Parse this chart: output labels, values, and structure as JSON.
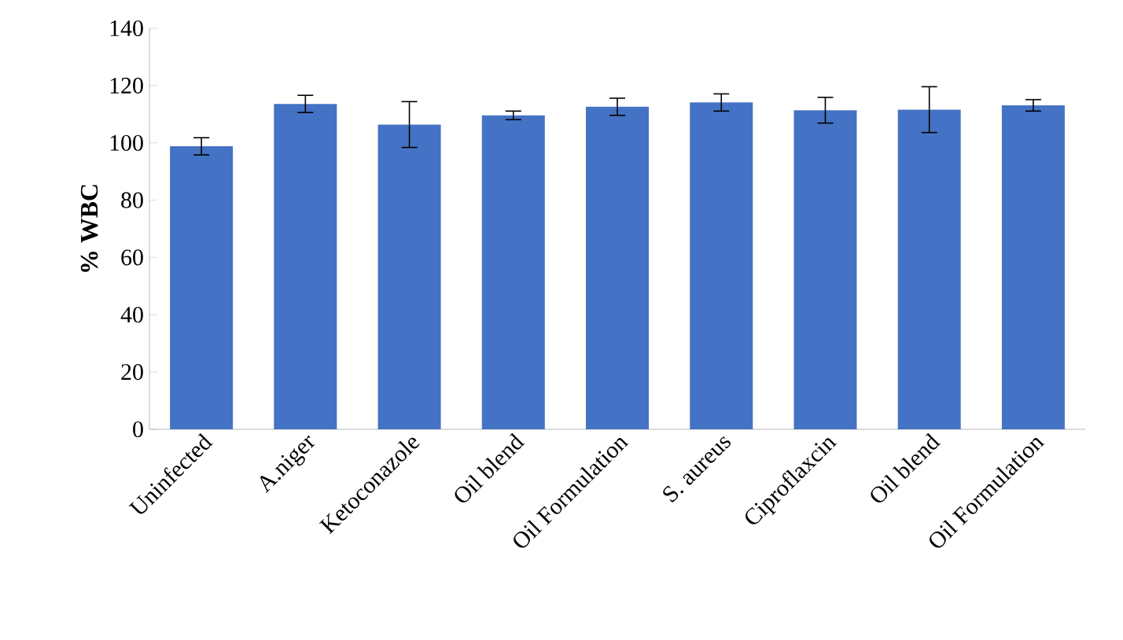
{
  "chart_data": {
    "type": "bar",
    "ylabel": "% WBC",
    "categories": [
      "Uninfected",
      "A.niger",
      "Ketoconazole",
      "Oil blend",
      "Oil Formulation",
      "S. aureus",
      "Ciproflaxcin",
      "Oil blend",
      "Oil Formulation"
    ],
    "values": [
      98.8,
      113.6,
      106.4,
      109.6,
      112.6,
      114.1,
      111.4,
      111.6,
      113.1
    ],
    "errors": [
      3,
      3,
      8,
      1.5,
      3,
      3,
      4.5,
      8,
      2
    ],
    "color": "#4472c4",
    "ylim": [
      0,
      140
    ],
    "yticks": [
      0,
      20,
      40,
      60,
      80,
      100,
      120,
      140
    ],
    "grid": false
  }
}
